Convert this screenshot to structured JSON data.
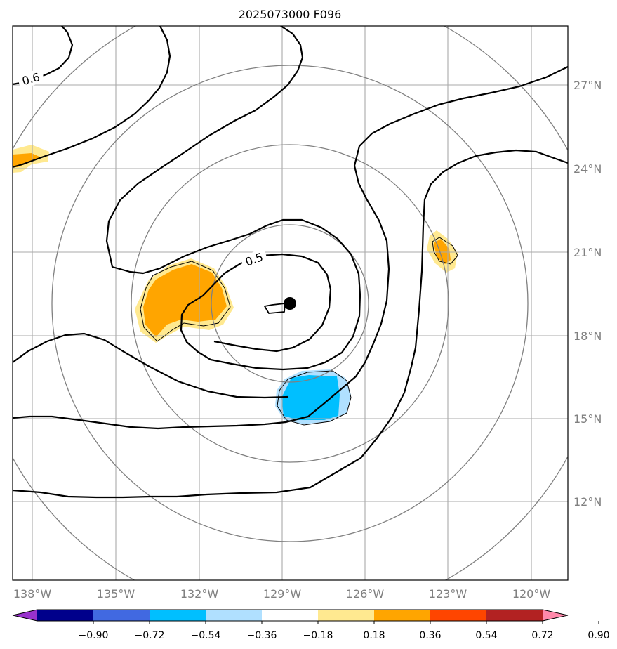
{
  "title": "2025073000 F096",
  "longitude_ticks": [
    "138°W",
    "135°W",
    "132°W",
    "129°W",
    "126°W",
    "123°W",
    "120°W"
  ],
  "latitude_ticks": [
    "27°N",
    "24°N",
    "21°N",
    "18°N",
    "15°N",
    "12°N"
  ],
  "contour_labels": [
    "0.6",
    "0.5"
  ],
  "colorbar": {
    "tick_labels": [
      "−0.90",
      "−0.72",
      "−0.54",
      "−0.36",
      "−0.18",
      "0.18",
      "0.36",
      "0.54",
      "0.72",
      "0.90"
    ],
    "colors": [
      "#9932cc",
      "#00008b",
      "#4169e1",
      "#00bfff",
      "#b0e0ff",
      "#ffffff",
      "#ffe990",
      "#ffa500",
      "#ff4500",
      "#b22222",
      "#ff88aa"
    ]
  },
  "colors": {
    "grid": "#aaaaaa",
    "range_rings": "#808080",
    "contour": "#000000",
    "positive_fill": "#ffa500",
    "positive_fill_light": "#ffe990",
    "negative_fill": "#00bfff",
    "negative_fill_light": "#b0e0ff"
  },
  "storm_center_marker": "black-dot"
}
